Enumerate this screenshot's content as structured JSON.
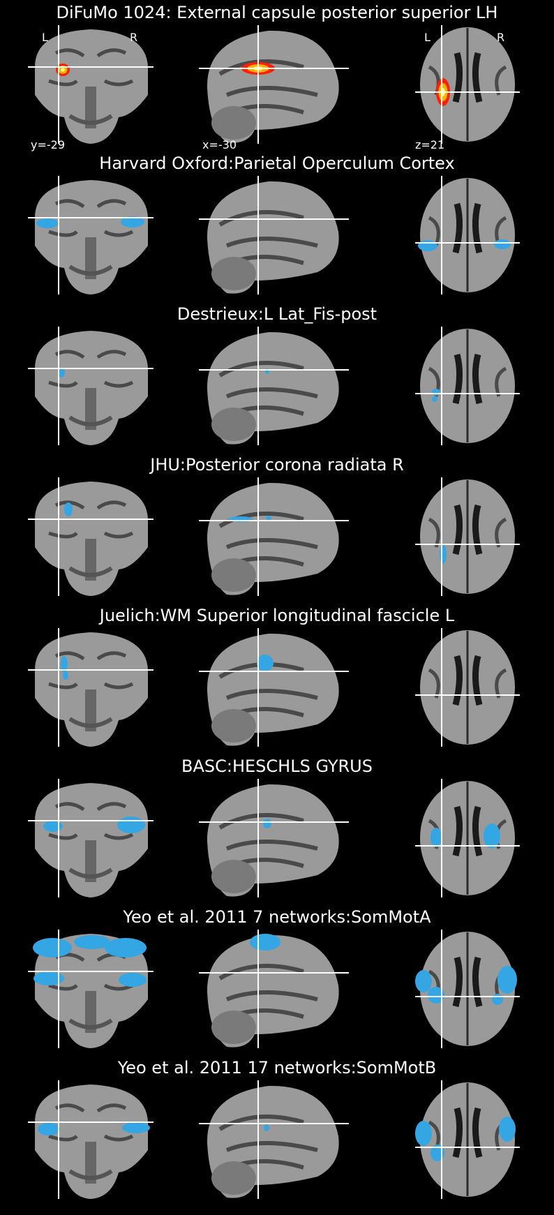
{
  "colors": {
    "background": "#000000",
    "atlas_overlay": "#34a6e4",
    "heatmap": [
      "#ff2000",
      "#ffb000",
      "#ffff80"
    ],
    "crosshair": "#ffffff"
  },
  "annotations": {
    "left_label": "L",
    "right_label": "R",
    "coronal_coord": "y=-29",
    "sagittal_coord": "x=-30",
    "axial_coord": "z=21"
  },
  "rows": [
    {
      "title": "DiFuMo 1024: External capsule posterior superior LH",
      "kind": "heat"
    },
    {
      "title": "Harvard Oxford:Parietal Operculum Cortex",
      "kind": "atlas"
    },
    {
      "title": "Destrieux:L Lat_Fis-post",
      "kind": "atlas"
    },
    {
      "title": "JHU:Posterior corona radiata R",
      "kind": "atlas"
    },
    {
      "title": "Juelich:WM Superior longitudinal fascicle L",
      "kind": "atlas"
    },
    {
      "title": "BASC:HESCHLS GYRUS",
      "kind": "atlas"
    },
    {
      "title": "Yeo et al. 2011 7 networks:SomMotA",
      "kind": "atlas"
    },
    {
      "title": "Yeo et al. 2011 17 networks:SomMotB",
      "kind": "atlas"
    }
  ]
}
